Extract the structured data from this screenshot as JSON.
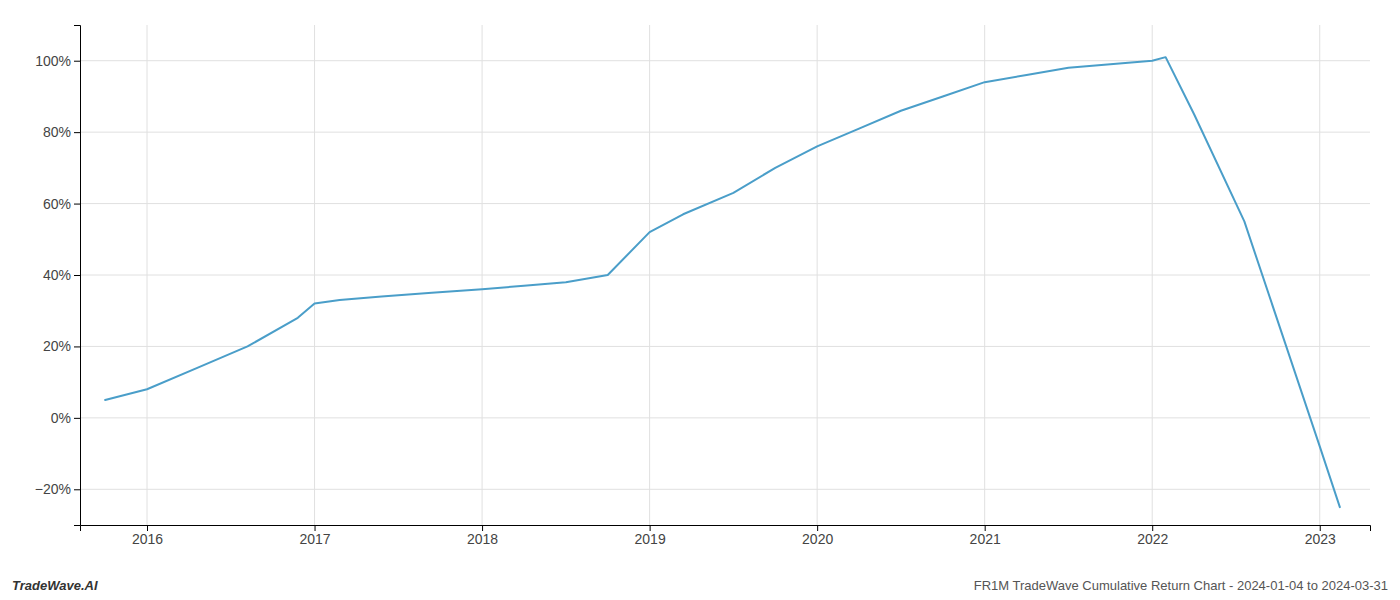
{
  "chart_data": {
    "type": "line",
    "x": [
      2015.75,
      2016.0,
      2016.3,
      2016.6,
      2016.9,
      2017.0,
      2017.15,
      2017.4,
      2017.7,
      2018.0,
      2018.25,
      2018.5,
      2018.75,
      2019.0,
      2019.2,
      2019.5,
      2019.75,
      2020.0,
      2020.25,
      2020.5,
      2020.75,
      2021.0,
      2021.25,
      2021.5,
      2021.75,
      2022.0,
      2022.08,
      2022.25,
      2022.55,
      2022.8,
      2023.0,
      2023.12
    ],
    "values": [
      5,
      8,
      14,
      20,
      28,
      32,
      33,
      34,
      35,
      36,
      37,
      38,
      40,
      52,
      57,
      63,
      70,
      76,
      81,
      86,
      90,
      94,
      96,
      98,
      99,
      100,
      101,
      85,
      55,
      20,
      -8,
      -25
    ],
    "color": "#4a9ec9",
    "xlim": [
      2015.6,
      2023.3
    ],
    "ylim": [
      -30,
      110
    ],
    "xticks": [
      2016,
      2017,
      2018,
      2019,
      2020,
      2021,
      2022,
      2023
    ],
    "yticks": [
      {
        "value": -20,
        "label": "−20%"
      },
      {
        "value": 0,
        "label": "0%"
      },
      {
        "value": 20,
        "label": "20%"
      },
      {
        "value": 40,
        "label": "40%"
      },
      {
        "value": 60,
        "label": "60%"
      },
      {
        "value": 80,
        "label": "80%"
      },
      {
        "value": 100,
        "label": "100%"
      }
    ],
    "grid": true,
    "annotations": [
      "TradeWave.AI",
      "FR1M TradeWave Cumulative Return Chart - 2024-01-04 to 2024-03-31"
    ]
  }
}
